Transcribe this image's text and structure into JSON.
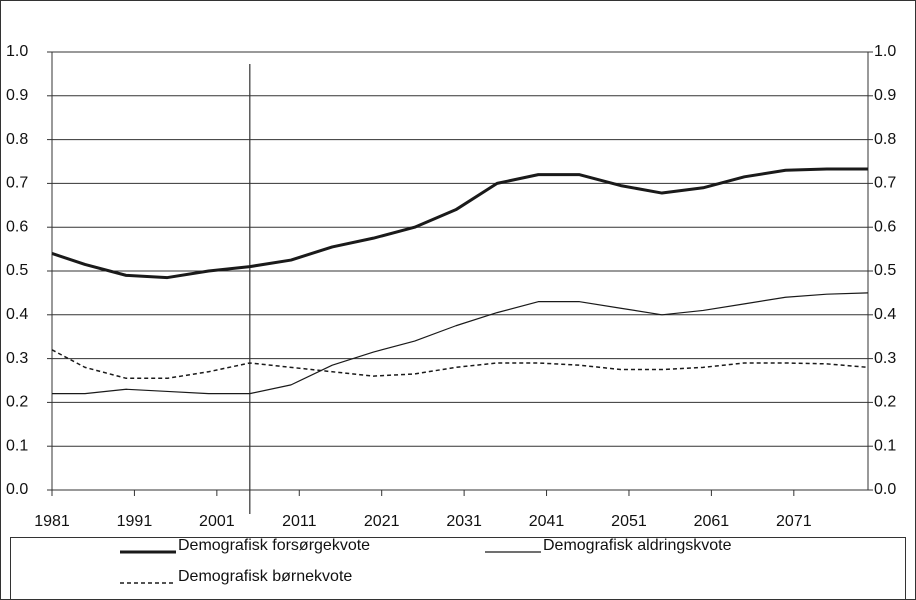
{
  "chart_data": {
    "type": "line",
    "x": [
      1981,
      1985,
      1990,
      1995,
      2000,
      2005,
      2010,
      2015,
      2020,
      2025,
      2030,
      2035,
      2040,
      2045,
      2050,
      2055,
      2060,
      2065,
      2070,
      2075,
      2080
    ],
    "series": [
      {
        "name": "Demografisk forsørgekvote",
        "color": "#1a1a1a",
        "line_width": 3,
        "line_style": "solid",
        "values": [
          0.54,
          0.515,
          0.49,
          0.485,
          0.5,
          0.51,
          0.525,
          0.555,
          0.575,
          0.6,
          0.64,
          0.7,
          0.72,
          0.72,
          0.695,
          0.678,
          0.69,
          0.715,
          0.73,
          0.733,
          0.733
        ]
      },
      {
        "name": "Demografisk aldringskvote",
        "color": "#1a1a1a",
        "line_width": 1.2,
        "line_style": "solid",
        "values": [
          0.22,
          0.22,
          0.23,
          0.225,
          0.22,
          0.22,
          0.24,
          0.285,
          0.315,
          0.34,
          0.375,
          0.405,
          0.43,
          0.43,
          0.415,
          0.4,
          0.41,
          0.425,
          0.44,
          0.447,
          0.45
        ]
      },
      {
        "name": "Demografisk børnekvote",
        "color": "#1a1a1a",
        "line_width": 1.5,
        "line_style": "dashed",
        "values": [
          0.32,
          0.28,
          0.255,
          0.255,
          0.27,
          0.29,
          0.28,
          0.27,
          0.26,
          0.265,
          0.28,
          0.29,
          0.29,
          0.285,
          0.275,
          0.275,
          0.28,
          0.29,
          0.29,
          0.288,
          0.28
        ]
      }
    ],
    "xlim": [
      1981,
      2080
    ],
    "xticks": [
      1981,
      1991,
      2001,
      2011,
      2021,
      2031,
      2041,
      2051,
      2061,
      2071
    ],
    "ylim": [
      0,
      1
    ],
    "yticks": [
      {
        "value": 0,
        "label": "0.0"
      },
      0.1,
      0.2,
      0.3,
      0.4,
      0.5,
      0.6,
      0.7,
      0.8,
      0.9,
      {
        "value": 1,
        "label": "1.0"
      }
    ],
    "right_axis_mirror": true,
    "reference_line_x": 2005,
    "grid": true,
    "legend_position": "bottom"
  }
}
